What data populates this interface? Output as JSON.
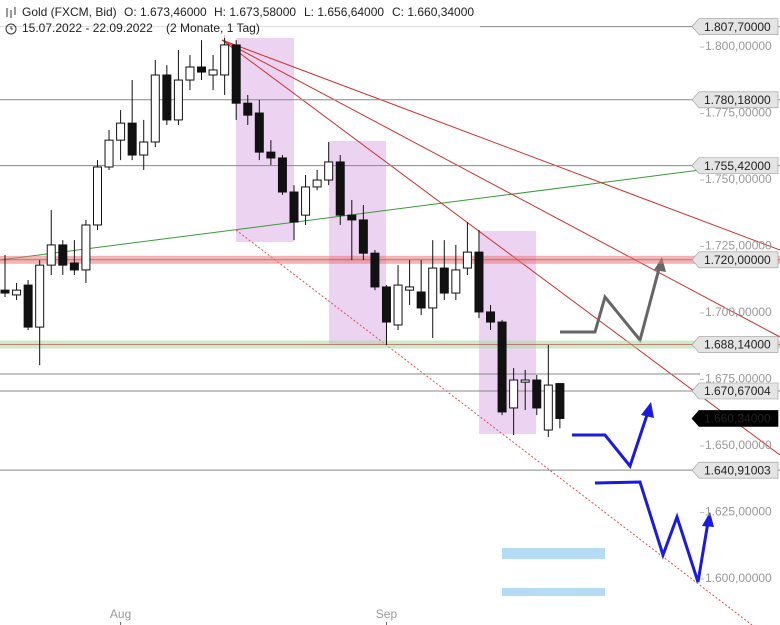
{
  "chart_data": {
    "type": "candlestick",
    "title": "Gold (FXCM, Bid)",
    "ohlc_text": [
      "O: 1.673,46000",
      "H: 1.673,58000",
      "L: 1.656,64000",
      "C: 1.660,34000"
    ],
    "date_range": "15.07.2022 - 22.09.2022",
    "period": "(2 Monate, 1 Tag)",
    "categories": [
      null,
      null,
      null,
      null,
      null,
      null,
      null,
      null,
      null,
      null,
      "Aug",
      null,
      null,
      null,
      null,
      null,
      null,
      null,
      null,
      null,
      null,
      null,
      null,
      null,
      null,
      null,
      null,
      null,
      null,
      null,
      null,
      null,
      null,
      "Sep",
      null,
      null,
      null,
      null,
      null,
      null,
      null,
      null,
      null,
      null,
      null,
      null,
      null,
      null,
      null
    ],
    "open": [
      1708.6,
      1706.8,
      1710.5,
      1694.7,
      1718.0,
      1725.6,
      1718.8,
      1716.2,
      1733.1,
      1754.9,
      1765.0,
      1771.4,
      1759.4,
      1764.3,
      1789.5,
      1772.6,
      1787.6,
      1792.5,
      1789.5,
      1789.5,
      1800.8,
      1778.9,
      1775.2,
      1760.5,
      1758.3,
      1745.5,
      1736.8,
      1747.4,
      1750.0,
      1756.8,
      1736.8,
      1735.0,
      1722.5,
      1709.8,
      1695.5,
      1708.6,
      1707.9,
      1701.9,
      1716.9,
      1707.5,
      1716.9,
      1722.9,
      1700.4,
      1696.6,
      1664.3,
      1674.0,
      1674.8,
      1656.0,
      1673.46
    ],
    "high": [
      1721.8,
      1711.3,
      1712.4,
      1719.9,
      1738.7,
      1727.4,
      1727.4,
      1735.0,
      1757.5,
      1768.8,
      1776.3,
      1787.6,
      1772.6,
      1795.1,
      1793.2,
      1798.9,
      1797.0,
      1802.6,
      1797.0,
      1804.5,
      1802.6,
      1782.0,
      1780.1,
      1765.0,
      1759.4,
      1748.1,
      1751.9,
      1753.8,
      1764.3,
      1759.4,
      1742.5,
      1740.6,
      1723.7,
      1710.5,
      1718.0,
      1719.9,
      1719.9,
      1727.4,
      1727.4,
      1725.6,
      1734.2,
      1731.2,
      1703.0,
      1697.4,
      1679.3,
      1678.6,
      1676.7,
      1688.0,
      1673.58
    ],
    "low": [
      1706.0,
      1704.9,
      1693.6,
      1680.4,
      1714.3,
      1714.3,
      1714.3,
      1711.3,
      1731.2,
      1753.8,
      1757.5,
      1757.5,
      1753.8,
      1762.4,
      1770.7,
      1770.7,
      1783.8,
      1787.6,
      1783.8,
      1782.0,
      1772.6,
      1770.7,
      1757.5,
      1755.6,
      1744.4,
      1727.4,
      1733.1,
      1746.2,
      1748.1,
      1733.1,
      1719.9,
      1719.9,
      1708.6,
      1688.0,
      1693.6,
      1703.0,
      1699.2,
      1690.6,
      1704.9,
      1704.9,
      1714.3,
      1698.1,
      1693.6,
      1661.6,
      1654.1,
      1663.5,
      1661.6,
      1653.4,
      1656.64
    ],
    "close": [
      1707.5,
      1708.6,
      1694.7,
      1718.0,
      1725.6,
      1718.0,
      1716.2,
      1733.1,
      1754.9,
      1765.0,
      1771.4,
      1759.4,
      1764.3,
      1789.5,
      1772.6,
      1787.6,
      1792.5,
      1790.6,
      1791.4,
      1800.8,
      1778.9,
      1774.4,
      1760.5,
      1758.3,
      1745.5,
      1734.2,
      1747.4,
      1750.0,
      1756.8,
      1736.8,
      1735.0,
      1722.5,
      1709.8,
      1696.6,
      1710.5,
      1709.8,
      1701.9,
      1716.9,
      1707.5,
      1716.2,
      1722.9,
      1700.4,
      1696.6,
      1662.8,
      1674.8,
      1674.8,
      1664.3,
      1672.9,
      1660.34
    ],
    "up_color": "#ffffff",
    "down_color": "#111111",
    "ylim": [
      1590.2,
      1817.7
    ],
    "yticks": [
      {
        "value": 1600,
        "label": "1.600,00000"
      },
      {
        "value": 1625,
        "label": "1.625,00000"
      },
      {
        "value": 1650,
        "label": "1.650,00000"
      },
      {
        "value": 1675,
        "label": "1.675,00000"
      },
      {
        "value": 1700,
        "label": "1.700,00000"
      },
      {
        "value": 1725,
        "label": "1.725,00000"
      },
      {
        "value": 1750,
        "label": "1.750,00000"
      },
      {
        "value": 1775,
        "label": "1.775,00000"
      },
      {
        "value": 1800,
        "label": "1.800,00000"
      }
    ],
    "levels": [
      {
        "value": 1807.7,
        "label": "1.807,70000",
        "color": "#888888"
      },
      {
        "value": 1780.18,
        "label": "1.780,18000",
        "color": "#888888"
      },
      {
        "value": 1755.42,
        "label": "1.755,42000",
        "color": "#888888"
      },
      {
        "value": 1720.0,
        "label": "1.720,00000",
        "color": "#e87878",
        "band": true
      },
      {
        "value": 1688.14,
        "label": "1.688,14000",
        "color": "#9edc9e",
        "band": true
      },
      {
        "value": 1670.67,
        "label": "1.670,67004",
        "color": "#888888"
      },
      {
        "value": 1660.34,
        "label": "1.660,34000",
        "color": "#000000",
        "current": true
      },
      {
        "value": 1640.91,
        "label": "1.640,91003",
        "color": "#888888"
      }
    ]
  }
}
